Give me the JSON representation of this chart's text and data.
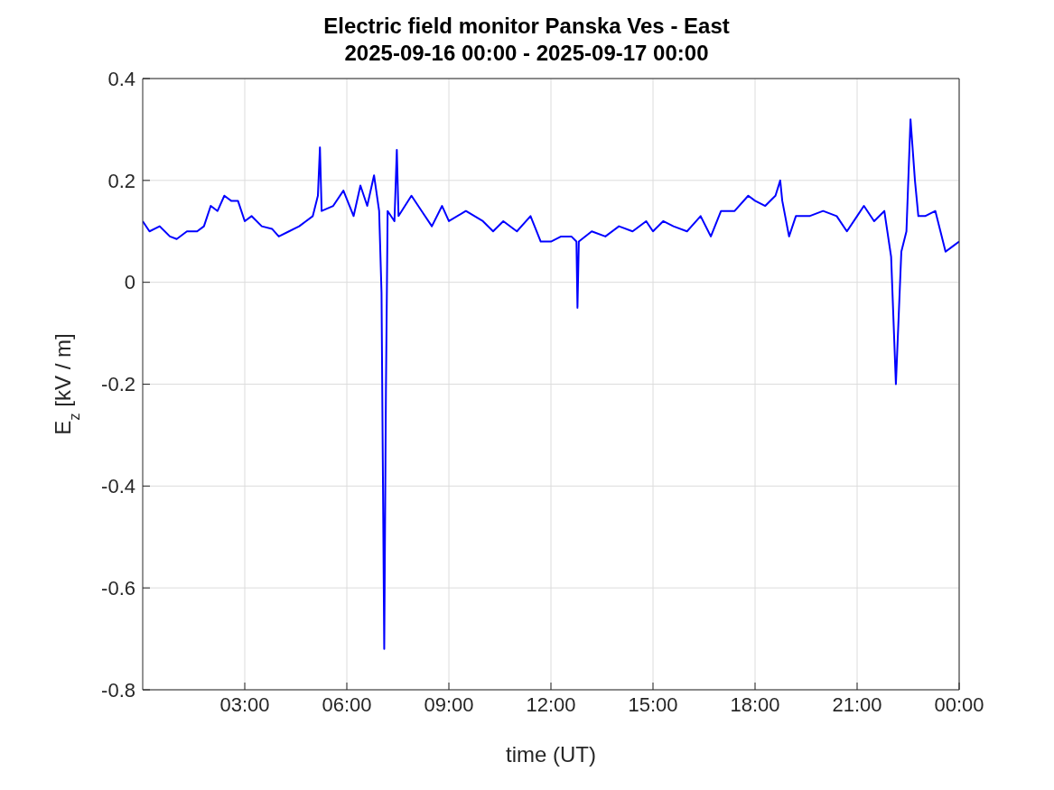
{
  "chart_data": {
    "type": "line",
    "title": "Electric field monitor Panska Ves - East",
    "subtitle": "2025-09-16 00:00 - 2025-09-17 00:00",
    "xlabel": "time (UT)",
    "ylabel": "E$_{z}$ [kV / m]",
    "x": [
      0,
      0.2,
      0.5,
      0.8,
      1.0,
      1.3,
      1.6,
      1.8,
      2.0,
      2.2,
      2.4,
      2.6,
      2.8,
      3.0,
      3.2,
      3.5,
      3.8,
      4.0,
      4.3,
      4.6,
      4.8,
      5.0,
      5.15,
      5.21,
      5.26,
      5.6,
      5.9,
      6.2,
      6.4,
      6.6,
      6.8,
      6.95,
      7.02,
      7.1,
      7.15,
      7.2,
      7.4,
      7.47,
      7.52,
      7.9,
      8.2,
      8.5,
      8.8,
      9.0,
      9.5,
      10.0,
      10.3,
      10.6,
      11.0,
      11.4,
      11.7,
      12.0,
      12.3,
      12.6,
      12.75,
      12.78,
      12.82,
      13.2,
      13.6,
      14.0,
      14.4,
      14.8,
      15.0,
      15.3,
      15.6,
      16.0,
      16.4,
      16.7,
      17.0,
      17.4,
      17.8,
      18.0,
      18.3,
      18.6,
      18.74,
      18.8,
      19.0,
      19.2,
      19.6,
      20.0,
      20.4,
      20.7,
      21.0,
      21.2,
      21.5,
      21.8,
      22.0,
      22.14,
      22.3,
      22.45,
      22.57,
      22.7,
      22.8,
      23.0,
      23.3,
      23.6,
      23.8,
      24
    ],
    "series": [
      {
        "color": "#0000ff",
        "values": [
          0.12,
          0.1,
          0.11,
          0.09,
          0.085,
          0.1,
          0.1,
          0.11,
          0.15,
          0.14,
          0.17,
          0.16,
          0.16,
          0.12,
          0.13,
          0.11,
          0.105,
          0.09,
          0.1,
          0.11,
          0.12,
          0.13,
          0.17,
          0.265,
          0.14,
          0.15,
          0.18,
          0.13,
          0.19,
          0.15,
          0.21,
          0.14,
          -0.02,
          -0.72,
          -0.21,
          0.14,
          0.12,
          0.26,
          0.13,
          0.17,
          0.14,
          0.11,
          0.15,
          0.12,
          0.14,
          0.12,
          0.1,
          0.12,
          0.1,
          0.13,
          0.08,
          0.08,
          0.09,
          0.09,
          0.08,
          -0.05,
          0.08,
          0.1,
          0.09,
          0.11,
          0.1,
          0.12,
          0.1,
          0.12,
          0.11,
          0.1,
          0.13,
          0.09,
          0.14,
          0.14,
          0.17,
          0.16,
          0.15,
          0.17,
          0.2,
          0.16,
          0.09,
          0.13,
          0.13,
          0.14,
          0.13,
          0.1,
          0.13,
          0.15,
          0.12,
          0.14,
          0.05,
          -0.2,
          0.06,
          0.1,
          0.32,
          0.2,
          0.13,
          0.13,
          0.14,
          0.06,
          0.07,
          0.08
        ]
      }
    ],
    "xlim": [
      0,
      24
    ],
    "xticks": [
      {
        "value": 3,
        "label": "03:00"
      },
      {
        "value": 6,
        "label": "06:00"
      },
      {
        "value": 9,
        "label": "09:00"
      },
      {
        "value": 12,
        "label": "12:00"
      },
      {
        "value": 15,
        "label": "15:00"
      },
      {
        "value": 18,
        "label": "18:00"
      },
      {
        "value": 21,
        "label": "21:00"
      },
      {
        "value": 24,
        "label": "00:00"
      }
    ],
    "ylim": [
      -0.8,
      0.4
    ],
    "yticks": [
      -0.8,
      -0.6,
      -0.4,
      -0.2,
      0,
      0.2,
      0.4
    ],
    "grid": true,
    "legend": false
  }
}
